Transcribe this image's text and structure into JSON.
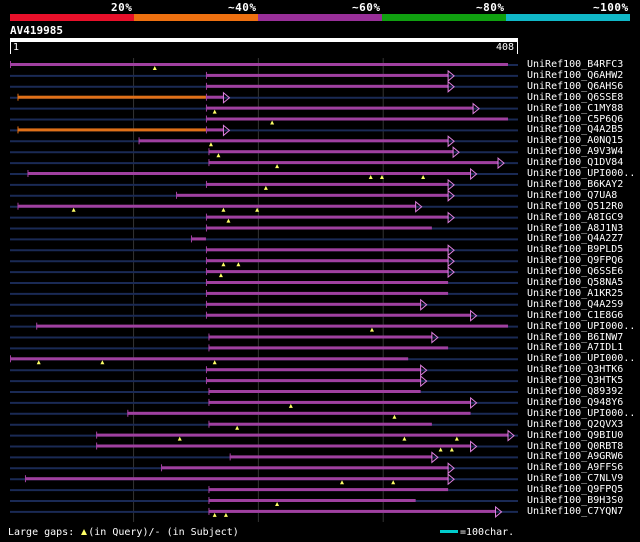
{
  "legend": {
    "labels": [
      "20%",
      "~40%",
      "~60%",
      "~80%",
      "~100%"
    ],
    "colors": [
      "#e8102a",
      "#ee7010",
      "#992f99",
      "#10a010",
      "#10b8c8"
    ]
  },
  "query": {
    "name": "AV419985",
    "length": 408,
    "start_label": "1",
    "end_label": "408"
  },
  "colors": {
    "match_purple": "#a040a0",
    "match_orange": "#e07018",
    "insert_yellow": "#ffff66",
    "background_line": "#1a2a55",
    "grid": "#333333"
  },
  "hits": [
    {
      "name": "UniRef100_B4RFC3",
      "segments": [
        [
          1,
          400,
          "p"
        ]
      ],
      "arrow": false,
      "inserts": [
        117
      ]
    },
    {
      "name": "UniRef100_Q6AHW2",
      "segments": [
        [
          158,
          352,
          "p"
        ]
      ],
      "arrow": true,
      "inserts": []
    },
    {
      "name": "UniRef100_Q6AHS6",
      "segments": [
        [
          158,
          352,
          "p"
        ]
      ],
      "arrow": true,
      "inserts": []
    },
    {
      "name": "UniRef100_Q6SSE8",
      "segments": [
        [
          7,
          158,
          "o"
        ],
        [
          158,
          172,
          "p"
        ]
      ],
      "arrow": true,
      "inserts": []
    },
    {
      "name": "UniRef100_C1MY88",
      "segments": [
        [
          158,
          372,
          "p"
        ]
      ],
      "arrow": true,
      "inserts": [
        165
      ]
    },
    {
      "name": "UniRef100_C5P6Q6",
      "segments": [
        [
          158,
          400,
          "p"
        ]
      ],
      "arrow": false,
      "inserts": [
        211
      ]
    },
    {
      "name": "UniRef100_Q4A2B5",
      "segments": [
        [
          7,
          158,
          "o"
        ],
        [
          158,
          172,
          "p"
        ]
      ],
      "arrow": true,
      "inserts": []
    },
    {
      "name": "UniRef100_A0NQ15",
      "segments": [
        [
          104,
          352,
          "p"
        ]
      ],
      "arrow": true,
      "inserts": [
        162
      ]
    },
    {
      "name": "UniRef100_A9V3W4",
      "segments": [
        [
          160,
          356,
          "p"
        ]
      ],
      "arrow": true,
      "inserts": [
        168
      ]
    },
    {
      "name": "UniRef100_Q1DV84",
      "segments": [
        [
          160,
          392,
          "p"
        ]
      ],
      "arrow": true,
      "inserts": [
        215
      ]
    },
    {
      "name": "UniRef100_UPI000..",
      "segments": [
        [
          15,
          370,
          "p"
        ]
      ],
      "arrow": true,
      "inserts": [
        290,
        299,
        332
      ]
    },
    {
      "name": "UniRef100_B6KAY2",
      "segments": [
        [
          158,
          352,
          "p"
        ]
      ],
      "arrow": true,
      "inserts": [
        206
      ]
    },
    {
      "name": "UniRef100_Q7UA8",
      "segments": [
        [
          134,
          352,
          "p"
        ]
      ],
      "arrow": true,
      "inserts": []
    },
    {
      "name": "UniRef100_Q512R0",
      "segments": [
        [
          7,
          326,
          "p"
        ]
      ],
      "arrow": true,
      "inserts": [
        52,
        172,
        199
      ]
    },
    {
      "name": "UniRef100_A8IGC9",
      "segments": [
        [
          158,
          352,
          "p"
        ]
      ],
      "arrow": true,
      "inserts": [
        176
      ]
    },
    {
      "name": "UniRef100_A8J1N3",
      "segments": [
        [
          158,
          339,
          "p"
        ]
      ],
      "arrow": false,
      "inserts": []
    },
    {
      "name": "UniRef100_Q4A2Z7",
      "segments": [
        [
          146,
          158,
          "p"
        ]
      ],
      "arrow": false,
      "inserts": []
    },
    {
      "name": "UniRef100_B9PLD5",
      "segments": [
        [
          158,
          352,
          "p"
        ]
      ],
      "arrow": true,
      "inserts": []
    },
    {
      "name": "UniRef100_Q9FPQ6",
      "segments": [
        [
          158,
          352,
          "p"
        ]
      ],
      "arrow": true,
      "inserts": [
        172,
        184
      ]
    },
    {
      "name": "UniRef100_Q6SSE6",
      "segments": [
        [
          158,
          352,
          "p"
        ]
      ],
      "arrow": true,
      "inserts": [
        170
      ]
    },
    {
      "name": "UniRef100_Q58NA5",
      "segments": [
        [
          158,
          352,
          "p"
        ]
      ],
      "arrow": false,
      "inserts": []
    },
    {
      "name": "UniRef100_A1KR25",
      "segments": [
        [
          158,
          352,
          "p"
        ]
      ],
      "arrow": false,
      "inserts": []
    },
    {
      "name": "UniRef100_Q4A2S9",
      "segments": [
        [
          158,
          330,
          "p"
        ]
      ],
      "arrow": true,
      "inserts": []
    },
    {
      "name": "UniRef100_C1E8G6",
      "segments": [
        [
          158,
          370,
          "p"
        ]
      ],
      "arrow": true,
      "inserts": []
    },
    {
      "name": "UniRef100_UPI000..",
      "segments": [
        [
          22,
          400,
          "p"
        ]
      ],
      "arrow": false,
      "inserts": [
        291
      ]
    },
    {
      "name": "UniRef100_B6INW7",
      "segments": [
        [
          160,
          339,
          "p"
        ]
      ],
      "arrow": true,
      "inserts": []
    },
    {
      "name": "UniRef100_A7IDL1",
      "segments": [
        [
          160,
          352,
          "p"
        ]
      ],
      "arrow": false,
      "inserts": []
    },
    {
      "name": "UniRef100_UPI000..",
      "segments": [
        [
          1,
          320,
          "p"
        ]
      ],
      "arrow": false,
      "inserts": [
        24,
        75,
        165
      ]
    },
    {
      "name": "UniRef100_Q3HTK6",
      "segments": [
        [
          158,
          330,
          "p"
        ]
      ],
      "arrow": true,
      "inserts": []
    },
    {
      "name": "UniRef100_Q3HTK5",
      "segments": [
        [
          158,
          330,
          "p"
        ]
      ],
      "arrow": true,
      "inserts": []
    },
    {
      "name": "UniRef100_Q89392",
      "segments": [
        [
          160,
          330,
          "p"
        ]
      ],
      "arrow": false,
      "inserts": []
    },
    {
      "name": "UniRef100_Q948Y6",
      "segments": [
        [
          160,
          370,
          "p"
        ]
      ],
      "arrow": true,
      "inserts": [
        226
      ]
    },
    {
      "name": "UniRef100_UPI000..",
      "segments": [
        [
          95,
          370,
          "p"
        ]
      ],
      "arrow": false,
      "inserts": [
        309
      ]
    },
    {
      "name": "UniRef100_Q2QVX3",
      "segments": [
        [
          160,
          339,
          "p"
        ]
      ],
      "arrow": false,
      "inserts": [
        183
      ]
    },
    {
      "name": "UniRef100_Q9BIU0",
      "segments": [
        [
          70,
          400,
          "p"
        ]
      ],
      "arrow": true,
      "inserts": [
        137,
        317,
        359
      ]
    },
    {
      "name": "UniRef100_Q0RBT8",
      "segments": [
        [
          70,
          370,
          "p"
        ]
      ],
      "arrow": true,
      "inserts": [
        346,
        355
      ]
    },
    {
      "name": "UniRef100_A9GRW6",
      "segments": [
        [
          177,
          339,
          "p"
        ]
      ],
      "arrow": true,
      "inserts": []
    },
    {
      "name": "UniRef100_A9FFS6",
      "segments": [
        [
          122,
          352,
          "p"
        ]
      ],
      "arrow": true,
      "inserts": []
    },
    {
      "name": "UniRef100_C7NLV9",
      "segments": [
        [
          13,
          352,
          "p"
        ]
      ],
      "arrow": true,
      "inserts": [
        267,
        308
      ]
    },
    {
      "name": "UniRef100_Q9FPQ5",
      "segments": [
        [
          160,
          352,
          "p"
        ]
      ],
      "arrow": false,
      "inserts": []
    },
    {
      "name": "UniRef100_B9H3S0",
      "segments": [
        [
          160,
          326,
          "p"
        ]
      ],
      "arrow": false,
      "inserts": [
        215
      ]
    },
    {
      "name": "UniRef100_C7YQN7",
      "segments": [
        [
          160,
          390,
          "p"
        ]
      ],
      "arrow": true,
      "inserts": [
        165,
        174
      ]
    }
  ],
  "footer": {
    "gaps_label": "Large gaps:",
    "in_query": "(in Query)/",
    "dash": "-",
    "in_subject": "(in Subject)",
    "scale_label": "=100char."
  }
}
